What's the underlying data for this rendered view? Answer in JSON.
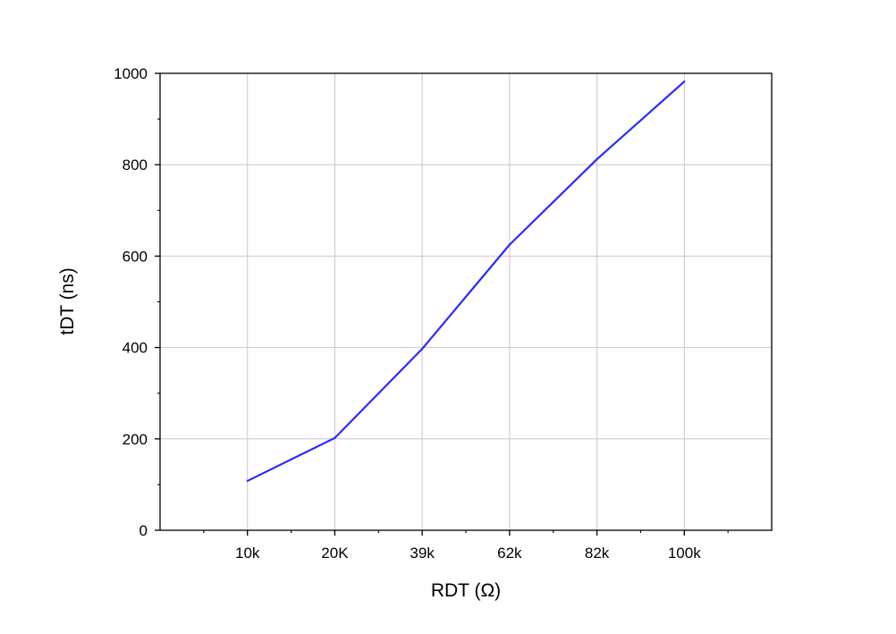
{
  "chart_data": {
    "type": "line",
    "title": "",
    "xlabel": "RDT (Ω)",
    "ylabel": "tDT (ns)",
    "categories": [
      "10k",
      "20K",
      "39k",
      "62k",
      "82k",
      "100k"
    ],
    "series": [
      {
        "values": [
          108,
          202,
          397,
          625,
          812,
          982
        ]
      }
    ],
    "ylim": [
      0,
      1000
    ],
    "yticks": [
      0,
      200,
      400,
      600,
      800,
      1000
    ],
    "grid": true,
    "legend": "none"
  },
  "colors": {
    "line": "#2b2bff",
    "grid": "#c8c8c8",
    "axis": "#000000"
  }
}
